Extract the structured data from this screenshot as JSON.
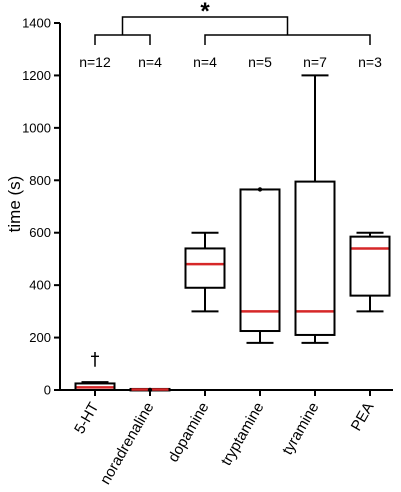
{
  "chart_data": {
    "type": "box",
    "ylabel": "time (s)",
    "ylim": [
      0,
      1400
    ],
    "yticks": [
      0,
      200,
      400,
      600,
      800,
      1000,
      1200,
      1400
    ],
    "grid": false,
    "legend": "none",
    "median_color": "#d62728",
    "box_color": "#000000",
    "categories": [
      "5-HT",
      "noradrenaline",
      "dopamine",
      "tryptamine",
      "tyramine",
      "PEA"
    ],
    "groups": [
      {
        "category": "5-HT",
        "n_label": "n=12",
        "min": 0,
        "q1": 0,
        "median": 10,
        "q3": 25,
        "max": 30,
        "outliers": [],
        "annotation": "†"
      },
      {
        "category": "noradrenaline",
        "n_label": "n=4",
        "min": 0,
        "q1": 0,
        "median": 2,
        "q3": 4,
        "max": 4,
        "outliers": [
          0
        ],
        "annotation": ""
      },
      {
        "category": "dopamine",
        "n_label": "n=4",
        "min": 300,
        "q1": 390,
        "median": 480,
        "q3": 540,
        "max": 600,
        "outliers": [],
        "annotation": ""
      },
      {
        "category": "tryptamine",
        "n_label": "n=5",
        "min": 180,
        "q1": 225,
        "median": 300,
        "q3": 765,
        "max": 765,
        "outliers": [
          765
        ],
        "annotation": ""
      },
      {
        "category": "tyramine",
        "n_label": "n=7",
        "min": 180,
        "q1": 210,
        "median": 300,
        "q3": 795,
        "max": 1200,
        "outliers": [],
        "annotation": ""
      },
      {
        "category": "PEA",
        "n_label": "n=3",
        "min": 300,
        "q1": 360,
        "median": 540,
        "q3": 585,
        "max": 600,
        "outliers": [],
        "annotation": ""
      }
    ],
    "significance": {
      "label": "*",
      "left_group": [
        "5-HT",
        "noradrenaline"
      ],
      "right_group": [
        "dopamine",
        "tryptamine",
        "tyramine",
        "PEA"
      ]
    }
  }
}
